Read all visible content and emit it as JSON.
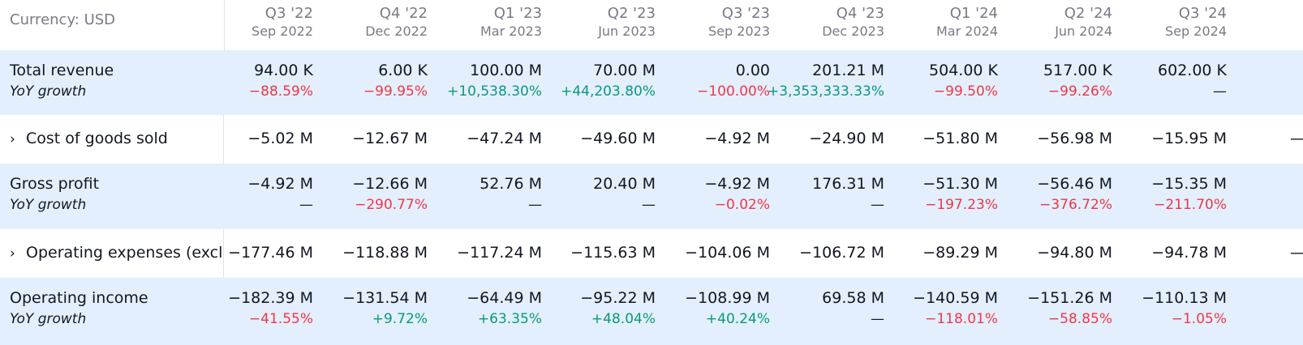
{
  "currency_label": "Currency: USD",
  "columns": [
    {
      "quarter": "Q3 '22",
      "date": "Sep 2022"
    },
    {
      "quarter": "Q4 '22",
      "date": "Dec 2022"
    },
    {
      "quarter": "Q1 '23",
      "date": "Mar 2023"
    },
    {
      "quarter": "Q2 '23",
      "date": "Jun 2023"
    },
    {
      "quarter": "Q3 '23",
      "date": "Sep 2023"
    },
    {
      "quarter": "Q4 '23",
      "date": "Dec 2023"
    },
    {
      "quarter": "Q1 '24",
      "date": "Mar 2024"
    },
    {
      "quarter": "Q2 '24",
      "date": "Jun 2024"
    },
    {
      "quarter": "Q3 '24",
      "date": "Sep 2024"
    }
  ],
  "rows": [
    {
      "label": "Total revenue",
      "sublabel": "YoY growth",
      "expandable": false,
      "values": [
        "94.00 K",
        "6.00 K",
        "100.00 M",
        "70.00 M",
        "0.00",
        "201.21 M",
        "504.00 K",
        "517.00 K",
        "602.00 K"
      ],
      "growth": [
        "−88.59%",
        "−99.95%",
        "+10,538.30%",
        "+44,203.80%",
        "−100.00%",
        "+3,353,333.33%",
        "−99.50%",
        "−99.26%",
        "—"
      ]
    },
    {
      "label": "Cost of goods sold",
      "expandable": true,
      "values": [
        "−5.02 M",
        "−12.67 M",
        "−47.24 M",
        "−49.60 M",
        "−4.92 M",
        "−24.90 M",
        "−51.80 M",
        "−56.98 M",
        "−15.95 M"
      ]
    },
    {
      "label": "Gross profit",
      "sublabel": "YoY growth",
      "expandable": false,
      "values": [
        "−4.92 M",
        "−12.66 M",
        "52.76 M",
        "20.40 M",
        "−4.92 M",
        "176.31 M",
        "−51.30 M",
        "−56.46 M",
        "−15.35 M"
      ],
      "growth": [
        "—",
        "−290.77%",
        "—",
        "—",
        "−0.02%",
        "—",
        "−197.23%",
        "−376.72%",
        "−211.70%"
      ]
    },
    {
      "label": "Operating expenses (excl.",
      "expandable": true,
      "values": [
        "−177.46 M",
        "−118.88 M",
        "−117.24 M",
        "−115.63 M",
        "−104.06 M",
        "−106.72 M",
        "−89.29 M",
        "−94.80 M",
        "−94.78 M"
      ]
    },
    {
      "label": "Operating income",
      "sublabel": "YoY growth",
      "expandable": false,
      "values": [
        "−182.39 M",
        "−131.54 M",
        "−64.49 M",
        "−95.22 M",
        "−108.99 M",
        "69.58 M",
        "−140.59 M",
        "−151.26 M",
        "−110.13 M"
      ],
      "growth": [
        "−41.55%",
        "+9.72%",
        "+63.35%",
        "+48.04%",
        "+40.24%",
        "—",
        "−118.01%",
        "−58.85%",
        "−1.05%"
      ]
    }
  ],
  "edge_dash": "—",
  "chevron_glyph": "›",
  "colors": {
    "row_highlight": "#e3effd",
    "negative": "#f23645",
    "positive": "#089981",
    "muted": "#787b86"
  }
}
